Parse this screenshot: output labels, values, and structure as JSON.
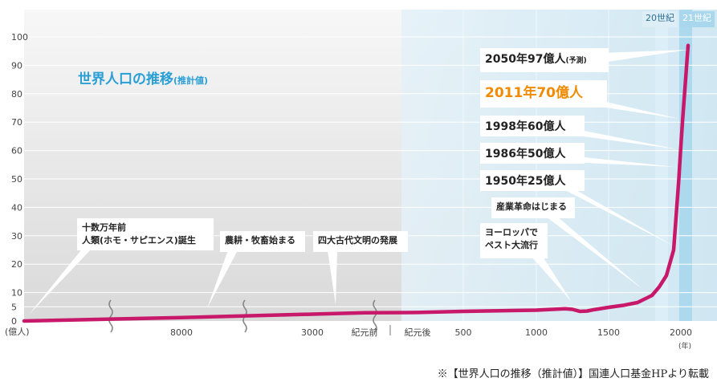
{
  "chart_data": {
    "type": "line",
    "title": "世界人口の推移",
    "title_suffix": "(推計値)",
    "ylabel": "(億人)",
    "xunit": "(年)",
    "ylim": [
      0,
      100
    ],
    "y_ticks": [
      0,
      5,
      10,
      20,
      30,
      40,
      50,
      60,
      70,
      80,
      90,
      100
    ],
    "x_ticks": [
      "8000",
      "3000",
      "紀元前",
      "紀元後",
      "500",
      "1000",
      "1500",
      "2000"
    ],
    "era_labels": [
      "20世紀",
      "21世紀"
    ],
    "series": [
      {
        "color": "#c8186a",
        "points": [
          {
            "x": "十数万年前",
            "y": 0
          },
          {
            "x": "8000",
            "y": 1.2
          },
          {
            "x": "3000",
            "y": 2.4
          },
          {
            "x": "紀元前",
            "y": 2.9
          },
          {
            "x": "紀元後",
            "y": 3.0
          },
          {
            "x": "500",
            "y": 3.4
          },
          {
            "x": "1000",
            "y": 3.8
          },
          {
            "x": "1200",
            "y": 4.3
          },
          {
            "x": "1250",
            "y": 4.1
          },
          {
            "x": "1300",
            "y": 3.4
          },
          {
            "x": "1350",
            "y": 3.5
          },
          {
            "x": "1400",
            "y": 4.0
          },
          {
            "x": "1500",
            "y": 4.8
          },
          {
            "x": "1600",
            "y": 5.5
          },
          {
            "x": "1700",
            "y": 6.5
          },
          {
            "x": "1800",
            "y": 9.0
          },
          {
            "x": "1850",
            "y": 12
          },
          {
            "x": "1900",
            "y": 16
          },
          {
            "x": "1950",
            "y": 25
          },
          {
            "x": "1986",
            "y": 50
          },
          {
            "x": "1998",
            "y": 60
          },
          {
            "x": "2011",
            "y": 70
          },
          {
            "x": "2050",
            "y": 97
          }
        ]
      }
    ],
    "annotations": [
      {
        "id": "hominid",
        "text": "十数万年前\n人類(ホモ・サピエンス)誕生"
      },
      {
        "id": "agri",
        "text": "農耕・牧畜始まる"
      },
      {
        "id": "civ",
        "text": "四大古代文明の発展"
      },
      {
        "id": "plague",
        "text": "ヨーロッパで\nペスト大流行"
      },
      {
        "id": "industrial",
        "text": "産業革命はじまる"
      },
      {
        "id": "y1950",
        "text": "1950年25億人"
      },
      {
        "id": "y1986",
        "text": "1986年50億人"
      },
      {
        "id": "y1998",
        "text": "1998年60億人"
      },
      {
        "id": "y2011",
        "text": "2011年70億人"
      },
      {
        "id": "y2050",
        "text": "2050年97億人",
        "small": "(予測)"
      }
    ]
  },
  "colors": {
    "line": "#c8186a",
    "title": "#2a9fd6",
    "highlight": "#f08a00",
    "era_band": "#a9d7ee",
    "era_band_light": "#ddeef7",
    "axis_text": "#444444"
  },
  "caption": "※【世界人口の推移（推計値）】国連人口基金HPより転載"
}
